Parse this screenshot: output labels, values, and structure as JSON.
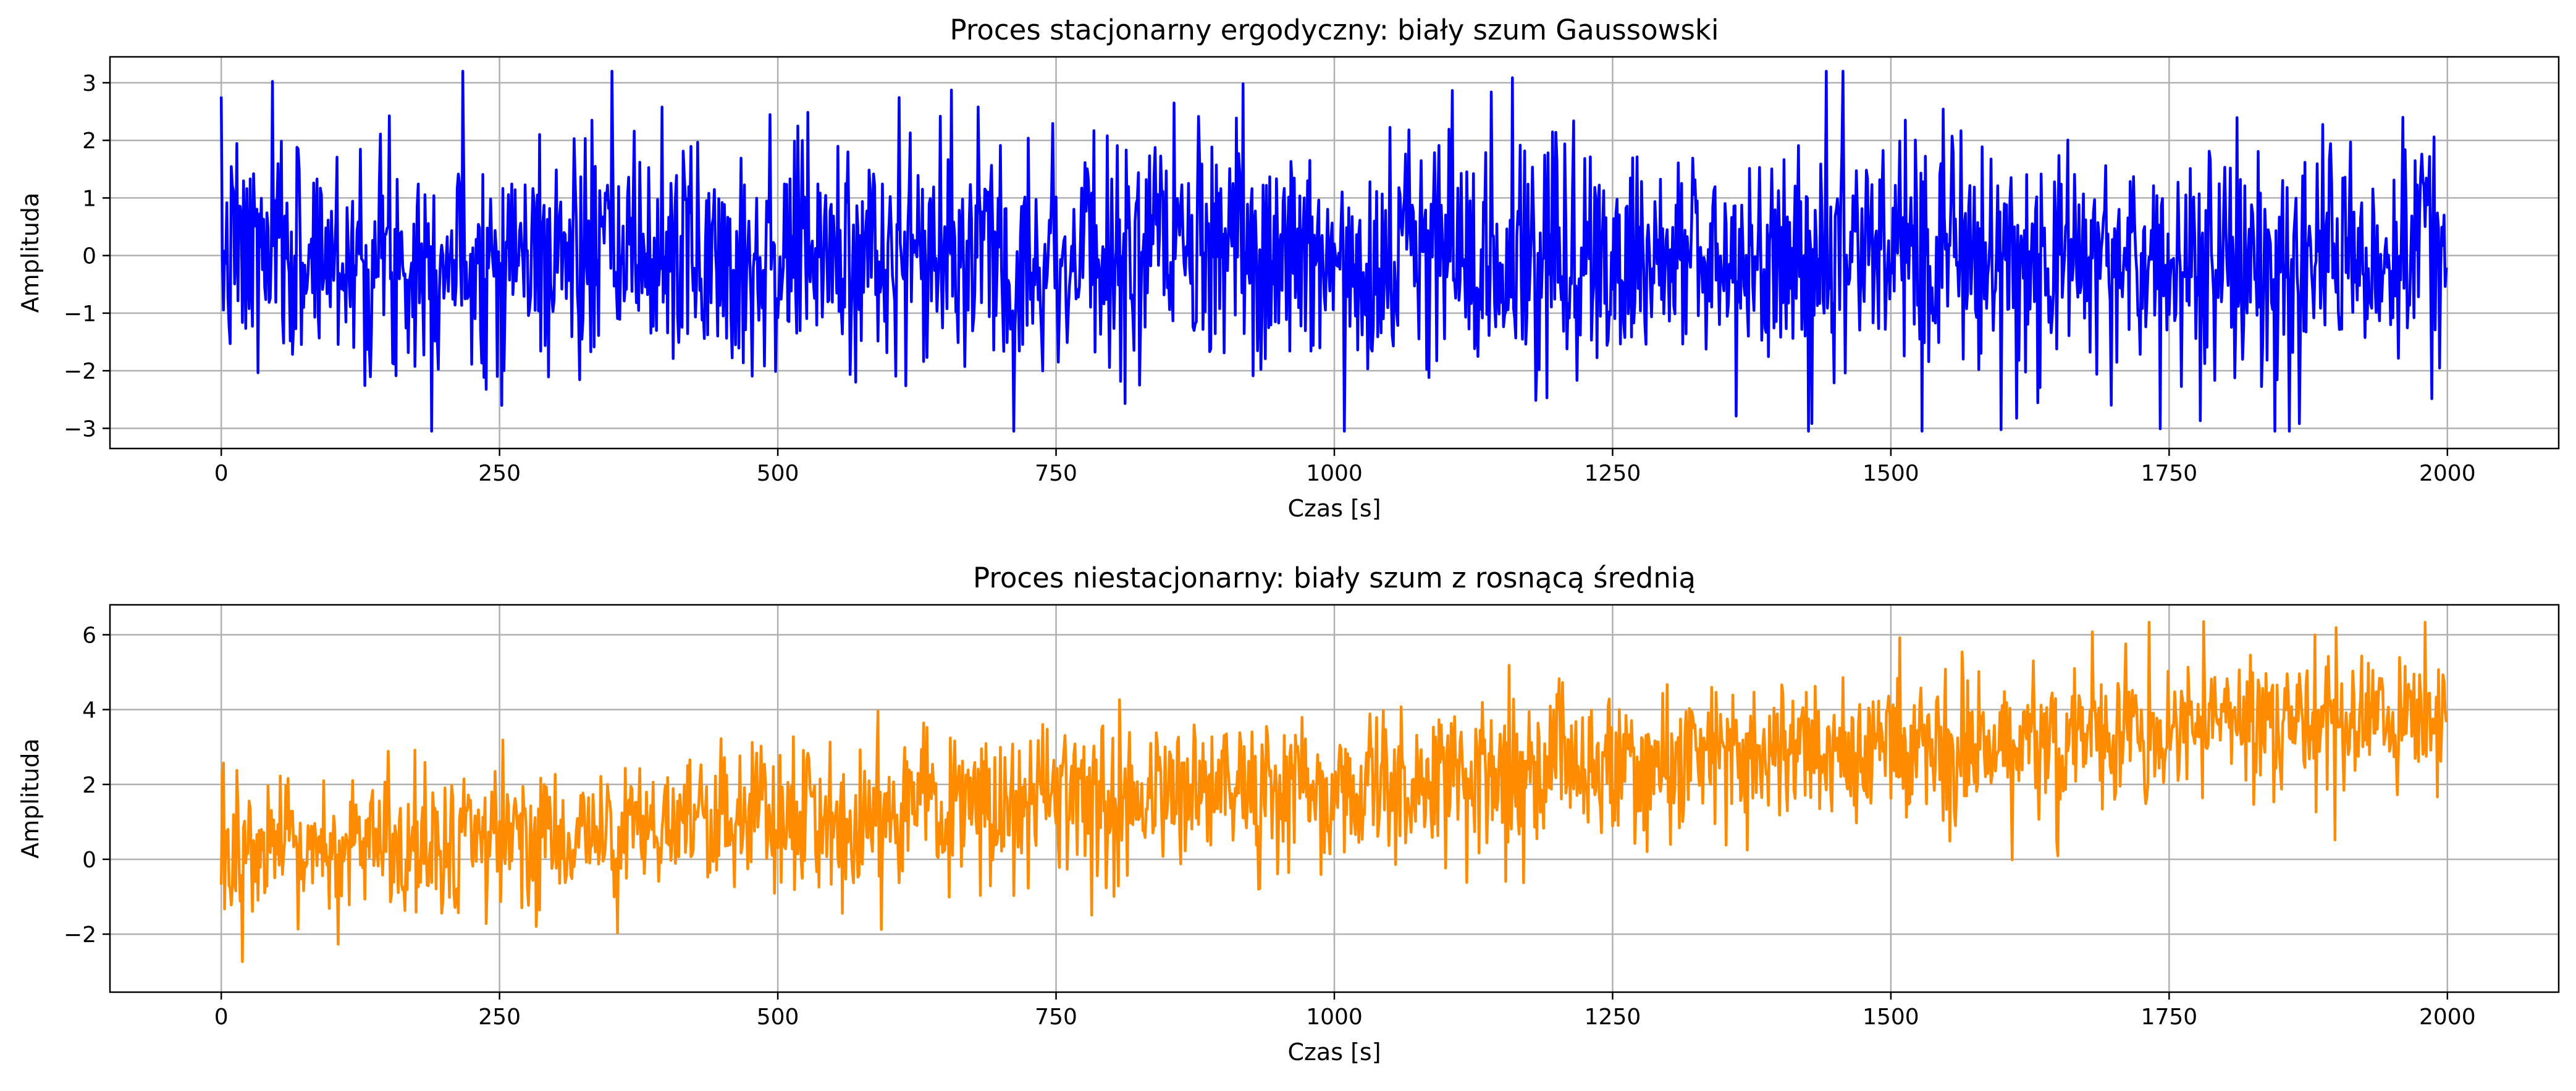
{
  "chart_data": [
    {
      "type": "line",
      "title": "Proces stacjonarny ergodyczny: biały szum Gaussowski",
      "xlabel": "Czas [s]",
      "ylabel": "Amplituda",
      "xlim": [
        -100,
        2100
      ],
      "ylim": [
        -3.35,
        3.45
      ],
      "xticks": [
        0,
        250,
        500,
        750,
        1000,
        1250,
        1500,
        1750,
        2000
      ],
      "xtick_labels": [
        "0",
        "250",
        "500",
        "750",
        "1000",
        "1250",
        "1500",
        "1750",
        "2000"
      ],
      "yticks": [
        -3,
        -2,
        -1,
        0,
        1,
        2,
        3
      ],
      "ytick_labels": [
        "−3",
        "−2",
        "−1",
        "0",
        "1",
        "2",
        "3"
      ],
      "grid": true,
      "color": "#0000ff",
      "n_points": 2000,
      "x_step": 1,
      "mean": 0.0,
      "std": 1.0,
      "min_value": -3.05,
      "max_value": 3.2,
      "seed": 7
    },
    {
      "type": "line",
      "title": "Proces niestacjonarny: biały szum z rosnącą średnią",
      "xlabel": "Czas [s]",
      "ylabel": "Amplituda",
      "xlim": [
        -100,
        2100
      ],
      "ylim": [
        -3.55,
        6.8
      ],
      "xticks": [
        0,
        250,
        500,
        750,
        1000,
        1250,
        1500,
        1750,
        2000
      ],
      "xtick_labels": [
        "0",
        "250",
        "500",
        "750",
        "1000",
        "1250",
        "1500",
        "1750",
        "2000"
      ],
      "yticks": [
        -2,
        0,
        2,
        4,
        6
      ],
      "ytick_labels": [
        "−2",
        "0",
        "2",
        "4",
        "6"
      ],
      "grid": true,
      "color": "#ff8c00",
      "n_points": 2000,
      "x_step": 1,
      "mean_start": 0.0,
      "mean_end": 4.0,
      "std": 1.0,
      "min_value": -3.1,
      "max_value": 6.35,
      "seed": 13
    }
  ]
}
